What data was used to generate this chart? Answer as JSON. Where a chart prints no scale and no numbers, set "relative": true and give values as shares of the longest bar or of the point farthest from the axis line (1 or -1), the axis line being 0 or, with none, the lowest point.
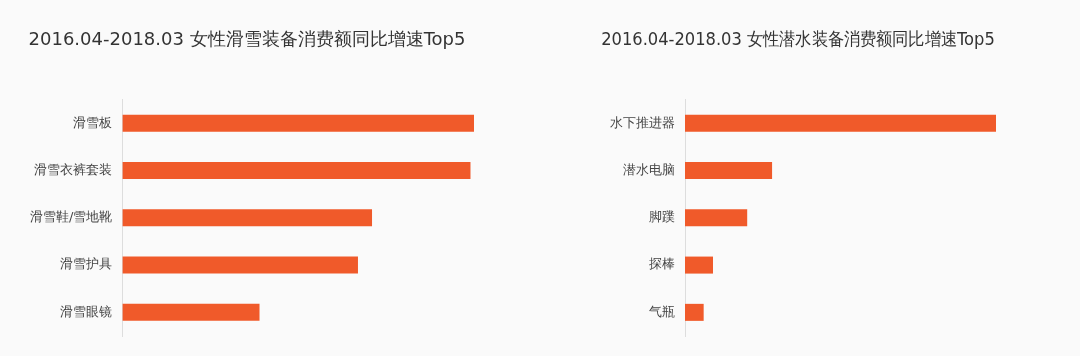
{
  "chart_data": [
    {
      "type": "bar",
      "orientation": "horizontal",
      "relative": true,
      "title": "2016.04-2018.03 女性滑雪装备消费额同比增速Top5",
      "categories": [
        "滑雪板",
        "滑雪衣裤套装",
        "滑雪鞋/雪地靴",
        "滑雪护具",
        "滑雪眼镜"
      ],
      "values": [
        1,
        0.99,
        0.71,
        0.67,
        0.39
      ],
      "color": "#f05a2a"
    },
    {
      "type": "bar",
      "orientation": "horizontal",
      "relative": true,
      "title": "2016.04-2018.03 女性潜水装备消费额同比增速Top5",
      "categories": [
        "水下推进器",
        "潜水电脑",
        "脚蹼",
        "探棒",
        "气瓶"
      ],
      "values": [
        1,
        0.28,
        0.2,
        0.09,
        0.06
      ],
      "color": "#f05a2a"
    }
  ]
}
